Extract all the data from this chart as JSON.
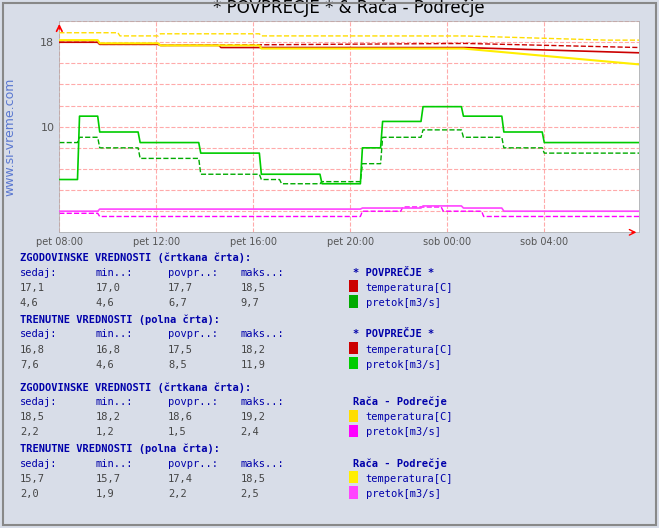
{
  "title": "* POVPREČJE * & Rača - Podrečje",
  "background_color": "#d8dde8",
  "plot_background": "#ffffff",
  "grid_color": "#ffcccc",
  "text_color": "#0000aa",
  "fig_width": 6.59,
  "fig_height": 5.28,
  "dpi": 100,
  "x_labels": [
    "pet 08:00",
    "pet 12:00",
    "pet 16:00",
    "pet 20:00",
    "sob 00:00",
    "sob 04:00"
  ],
  "x_ticks": [
    0,
    48,
    96,
    144,
    192,
    240
  ],
  "n_points": 288,
  "ylim": [
    0,
    20
  ],
  "watermark": "www.si-vreme.com",
  "table_data": {
    "povprecje_hist": {
      "label": "* POVPREČJE *",
      "temp": {
        "sedaj": 17.1,
        "min": 17.0,
        "povpr": 17.7,
        "maks": 18.5
      },
      "pretok": {
        "sedaj": 4.6,
        "min": 4.6,
        "povpr": 6.7,
        "maks": 9.7
      }
    },
    "povprecje_curr": {
      "label": "* POVPREČJE *",
      "temp": {
        "sedaj": 16.8,
        "min": 16.8,
        "povpr": 17.5,
        "maks": 18.2
      },
      "pretok": {
        "sedaj": 7.6,
        "min": 4.6,
        "povpr": 8.5,
        "maks": 11.9
      }
    },
    "raca_hist": {
      "label": "Rača - Podrečje",
      "temp": {
        "sedaj": 18.5,
        "min": 18.2,
        "povpr": 18.6,
        "maks": 19.2
      },
      "pretok": {
        "sedaj": 2.2,
        "min": 1.2,
        "povpr": 1.5,
        "maks": 2.4
      }
    },
    "raca_curr": {
      "label": "Rača - Podrečje",
      "temp": {
        "sedaj": 15.7,
        "min": 15.7,
        "povpr": 17.4,
        "maks": 18.5
      },
      "pretok": {
        "sedaj": 2.0,
        "min": 1.9,
        "povpr": 2.2,
        "maks": 2.5
      }
    }
  }
}
